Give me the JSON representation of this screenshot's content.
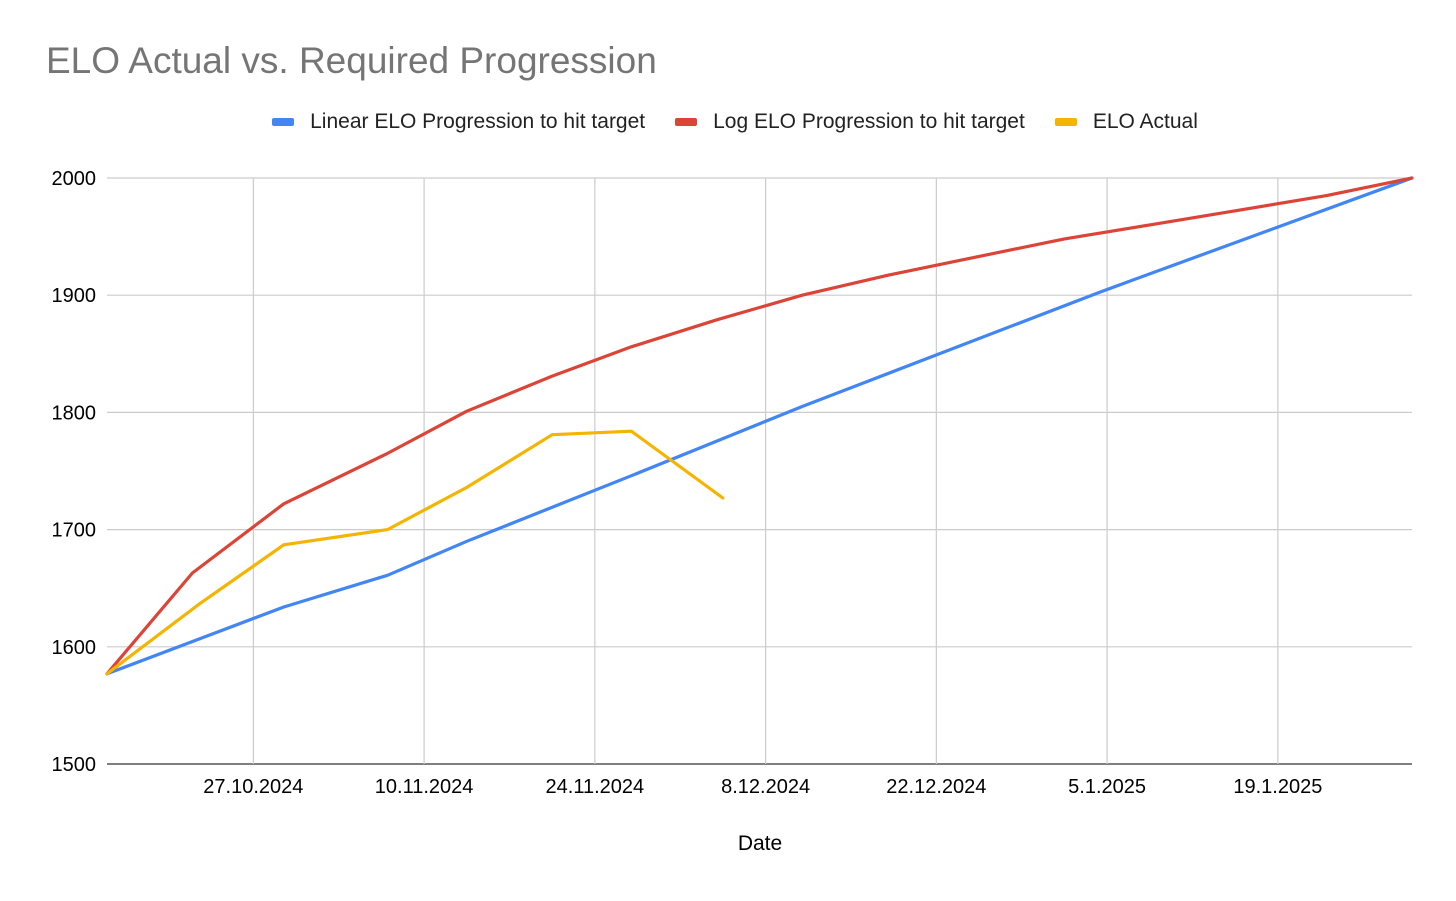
{
  "chart_data": {
    "type": "line",
    "title": "ELO Actual vs. Required Progression",
    "xlabel": "Date",
    "ylabel": "",
    "ylim": [
      1500,
      2000
    ],
    "yticks": [
      1500,
      1600,
      1700,
      1800,
      1900,
      2000
    ],
    "xlim_days": [
      0,
      107
    ],
    "xticks": [
      {
        "label": "27.10.2024",
        "day": 12
      },
      {
        "label": "10.11.2024",
        "day": 26
      },
      {
        "label": "24.11.2024",
        "day": 40
      },
      {
        "label": "8.12.2024",
        "day": 54
      },
      {
        "label": "22.12.2024",
        "day": 68
      },
      {
        "label": "5.1.2025",
        "day": 82
      },
      {
        "label": "19.1.2025",
        "day": 96
      }
    ],
    "grid": true,
    "legend_position": "top-center",
    "series": [
      {
        "name": "Linear ELO Progression to hit target",
        "color": "#4285F4",
        "points": [
          [
            0,
            1577
          ],
          [
            14.5,
            1634
          ],
          [
            23.0,
            1661
          ],
          [
            29.5,
            1690
          ],
          [
            43.0,
            1746
          ],
          [
            57.0,
            1805
          ],
          [
            81.5,
            1903
          ],
          [
            107,
            2000
          ]
        ]
      },
      {
        "name": "Log ELO Progression to hit target",
        "color": "#DB4437",
        "points": [
          [
            0,
            1577
          ],
          [
            7,
            1663
          ],
          [
            14.5,
            1722
          ],
          [
            23.0,
            1765
          ],
          [
            29.5,
            1801
          ],
          [
            36.5,
            1831
          ],
          [
            43.0,
            1856
          ],
          [
            50.0,
            1879
          ],
          [
            57.0,
            1900
          ],
          [
            64.0,
            1917
          ],
          [
            71.0,
            1932
          ],
          [
            78.5,
            1948
          ],
          [
            85.5,
            1960
          ],
          [
            92.5,
            1972
          ],
          [
            100.0,
            1985
          ],
          [
            107,
            2000
          ]
        ]
      },
      {
        "name": "ELO Actual",
        "color": "#F4B400",
        "points": [
          [
            0,
            1577
          ],
          [
            7.5,
            1636
          ],
          [
            14.5,
            1687
          ],
          [
            23.0,
            1700
          ],
          [
            29.5,
            1736
          ],
          [
            36.5,
            1781
          ],
          [
            43.0,
            1784
          ],
          [
            50.5,
            1727
          ]
        ]
      }
    ]
  }
}
